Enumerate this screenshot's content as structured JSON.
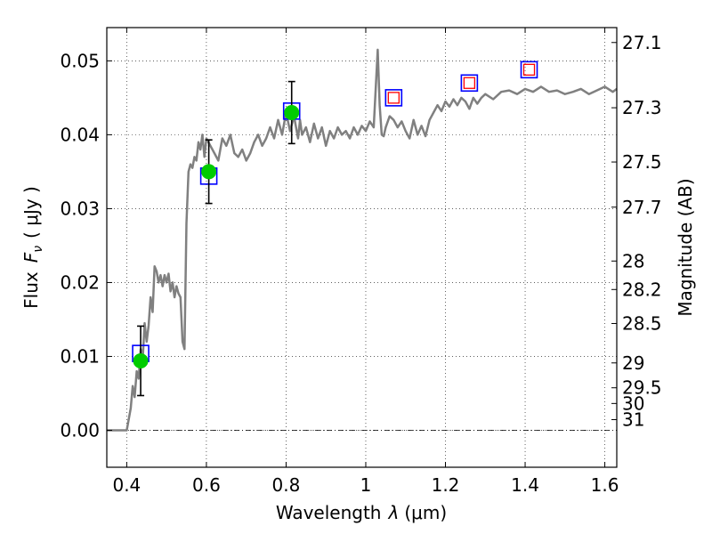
{
  "chart_data": {
    "type": "line",
    "xlabel_text": "Wavelength",
    "xlabel_symbol": "λ",
    "xlabel_unit": "(μm)",
    "ylabel_text": "Flux",
    "ylabel_symbol": "F",
    "ylabel_sub": "ν",
    "ylabel_unit": "( μJy )",
    "y2label": "Magnitude (AB)",
    "xlim": [
      0.35,
      1.63
    ],
    "ylim": [
      -0.005,
      0.0545
    ],
    "grid": true,
    "x_ticks": [
      0.4,
      0.6,
      0.8,
      1.0,
      1.2,
      1.4,
      1.6
    ],
    "x_tick_labels": [
      "0.4",
      "0.6",
      "0.8",
      "1",
      "1.2",
      "1.4",
      "1.6"
    ],
    "y_ticks": [
      0.0,
      0.01,
      0.02,
      0.03,
      0.04,
      0.05
    ],
    "y_tick_labels": [
      "0.00",
      "0.01",
      "0.02",
      "0.03",
      "0.04",
      "0.05"
    ],
    "mag_ticks": [
      27.1,
      27.3,
      27.5,
      27.7,
      28,
      28.2,
      28.5,
      29,
      29.5,
      30,
      31
    ],
    "mag_tick_labels": [
      "27.1",
      "27.3",
      "27.5",
      "27.7",
      "28",
      "28.2",
      "28.5",
      "29",
      "29.5",
      "30",
      "31"
    ],
    "colors": {
      "template": "#808080",
      "observed": "#00cc00",
      "model_box": "#0000ff",
      "model_inner": "#ff0000",
      "errorbar": "#000000",
      "zero_line": "#000000"
    },
    "series": [
      {
        "name": "template-spectrum",
        "x": [
          0.35,
          0.4,
          0.41,
          0.415,
          0.42,
          0.425,
          0.43,
          0.435,
          0.44,
          0.445,
          0.45,
          0.455,
          0.46,
          0.465,
          0.47,
          0.475,
          0.48,
          0.485,
          0.49,
          0.495,
          0.5,
          0.505,
          0.51,
          0.515,
          0.52,
          0.525,
          0.53,
          0.535,
          0.54,
          0.545,
          0.55,
          0.555,
          0.56,
          0.565,
          0.57,
          0.575,
          0.58,
          0.585,
          0.59,
          0.595,
          0.6,
          0.61,
          0.62,
          0.63,
          0.64,
          0.65,
          0.66,
          0.67,
          0.68,
          0.69,
          0.7,
          0.71,
          0.72,
          0.73,
          0.74,
          0.75,
          0.76,
          0.77,
          0.78,
          0.79,
          0.8,
          0.81,
          0.82,
          0.83,
          0.835,
          0.84,
          0.85,
          0.86,
          0.87,
          0.88,
          0.89,
          0.9,
          0.91,
          0.92,
          0.93,
          0.94,
          0.95,
          0.96,
          0.97,
          0.98,
          0.99,
          1.0,
          1.01,
          1.02,
          1.03,
          1.035,
          1.04,
          1.045,
          1.05,
          1.06,
          1.07,
          1.08,
          1.09,
          1.1,
          1.11,
          1.12,
          1.13,
          1.14,
          1.15,
          1.16,
          1.17,
          1.18,
          1.19,
          1.2,
          1.21,
          1.22,
          1.23,
          1.24,
          1.25,
          1.26,
          1.27,
          1.28,
          1.29,
          1.3,
          1.32,
          1.34,
          1.36,
          1.38,
          1.4,
          1.42,
          1.44,
          1.46,
          1.48,
          1.5,
          1.52,
          1.54,
          1.56,
          1.58,
          1.6,
          1.62,
          1.63
        ],
        "y": [
          0.0,
          0.0,
          0.003,
          0.006,
          0.0045,
          0.008,
          0.007,
          0.011,
          0.0095,
          0.0145,
          0.012,
          0.0142,
          0.018,
          0.016,
          0.0222,
          0.0215,
          0.02,
          0.021,
          0.0195,
          0.021,
          0.02,
          0.0212,
          0.0188,
          0.02,
          0.018,
          0.0195,
          0.0185,
          0.018,
          0.012,
          0.011,
          0.028,
          0.035,
          0.036,
          0.0355,
          0.037,
          0.0365,
          0.039,
          0.038,
          0.04,
          0.037,
          0.0395,
          0.0385,
          0.0375,
          0.0365,
          0.0395,
          0.0385,
          0.04,
          0.0375,
          0.037,
          0.038,
          0.0365,
          0.0375,
          0.039,
          0.04,
          0.0385,
          0.0395,
          0.041,
          0.0395,
          0.042,
          0.04,
          0.043,
          0.0405,
          0.0425,
          0.0395,
          0.042,
          0.04,
          0.041,
          0.039,
          0.0415,
          0.0395,
          0.041,
          0.0385,
          0.0405,
          0.0395,
          0.041,
          0.04,
          0.0405,
          0.0395,
          0.041,
          0.04,
          0.0412,
          0.0405,
          0.0418,
          0.041,
          0.0515,
          0.044,
          0.04,
          0.0398,
          0.041,
          0.0425,
          0.042,
          0.041,
          0.0418,
          0.0405,
          0.0395,
          0.042,
          0.04,
          0.0412,
          0.0398,
          0.042,
          0.043,
          0.044,
          0.0432,
          0.0445,
          0.0438,
          0.0448,
          0.044,
          0.045,
          0.0445,
          0.0435,
          0.045,
          0.0442,
          0.045,
          0.0455,
          0.0448,
          0.0458,
          0.046,
          0.0455,
          0.0462,
          0.0458,
          0.0465,
          0.0458,
          0.046,
          0.0455,
          0.0458,
          0.0462,
          0.0455,
          0.046,
          0.0465,
          0.0458,
          0.0462
        ]
      },
      {
        "name": "observed-photometry",
        "x": [
          0.435,
          0.606,
          0.814
        ],
        "y": [
          0.0094,
          0.035,
          0.043
        ],
        "err": [
          0.0047,
          0.0043,
          0.0042
        ]
      },
      {
        "name": "model-photometry",
        "x": [
          0.435,
          0.606,
          0.814,
          1.07,
          1.26,
          1.41
        ],
        "y": [
          0.0104,
          0.0344,
          0.0432,
          0.045,
          0.047,
          0.0488
        ]
      }
    ]
  }
}
